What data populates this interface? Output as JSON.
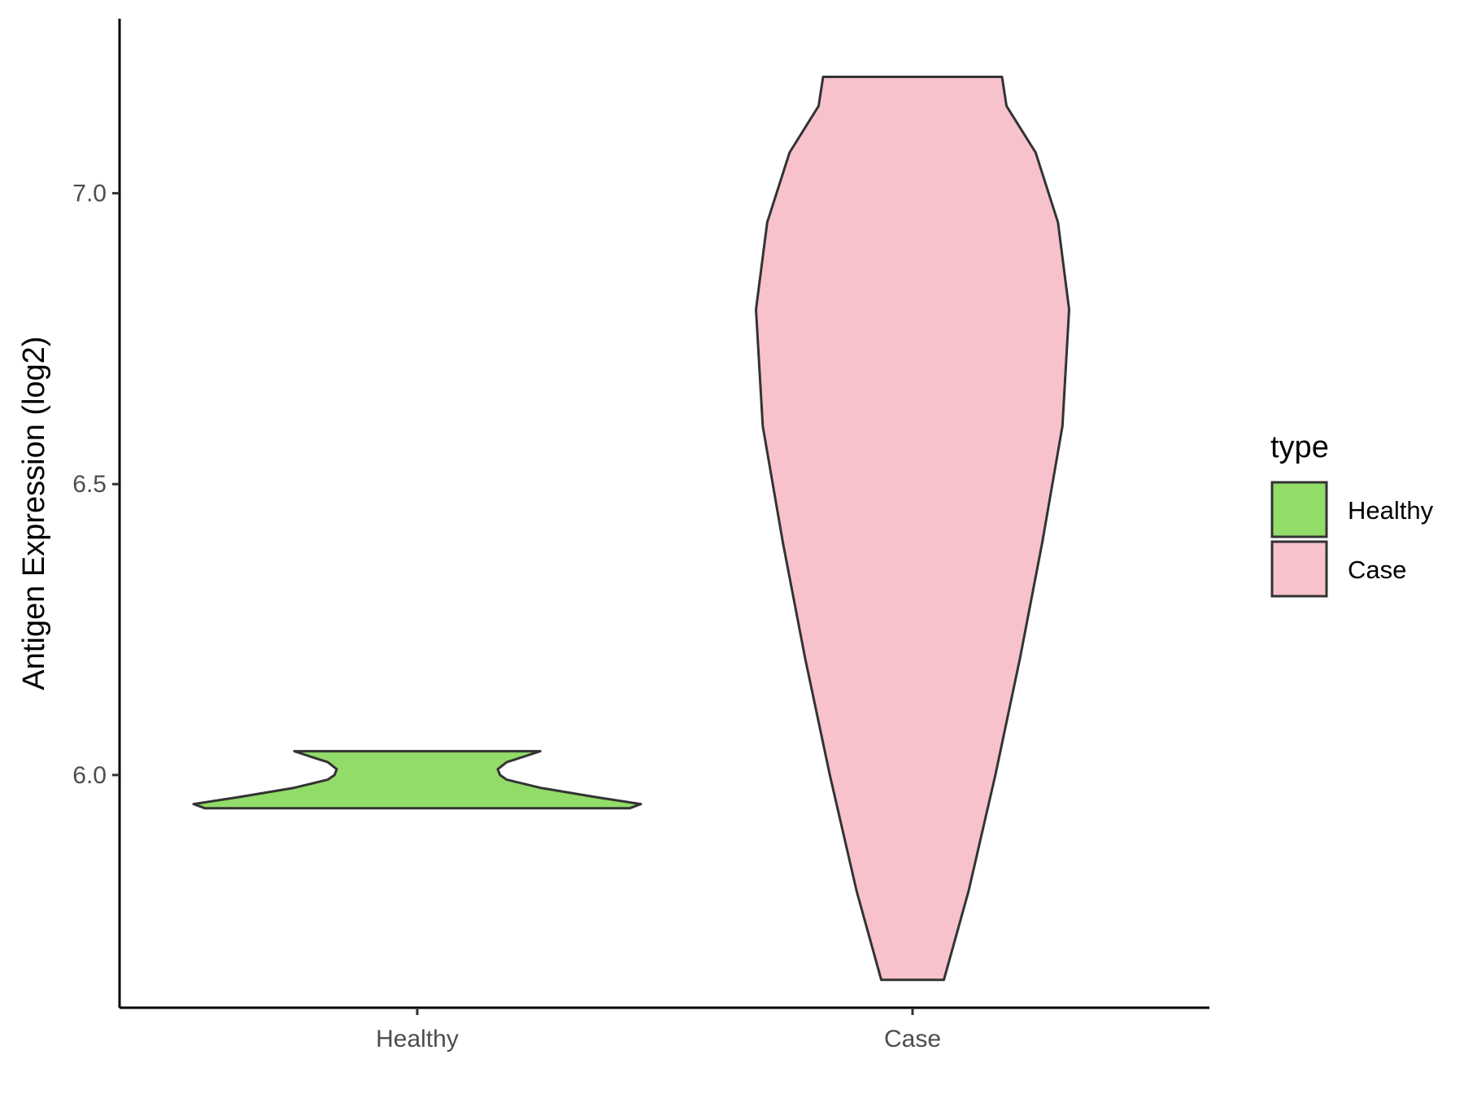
{
  "chart_data": {
    "type": "violin",
    "ylabel": "Antigen Expression (log2)",
    "xlabel": "",
    "ylim": [
      5.6,
      7.3
    ],
    "yticks": [
      6.0,
      6.5,
      7.0
    ],
    "ytick_labels": [
      "6.0",
      "6.5",
      "7.0"
    ],
    "categories": [
      "Healthy",
      "Case"
    ],
    "legend": {
      "title": "type",
      "position": "right",
      "entries": [
        "Healthy",
        "Case"
      ]
    },
    "grid": false,
    "series": [
      {
        "name": "Healthy",
        "color": "#92dc6a",
        "min": 5.943,
        "max": 6.041,
        "density": [
          [
            5.943,
            0.95
          ],
          [
            5.95,
            1.0
          ],
          [
            5.962,
            0.8
          ],
          [
            5.978,
            0.55
          ],
          [
            5.992,
            0.4
          ],
          [
            6.0,
            0.37
          ],
          [
            6.01,
            0.36
          ],
          [
            6.022,
            0.4
          ],
          [
            6.032,
            0.48
          ],
          [
            6.041,
            0.55
          ]
        ]
      },
      {
        "name": "Case",
        "color": "#f7c2cc",
        "min": 5.648,
        "max": 7.2,
        "density": [
          [
            5.648,
            0.14
          ],
          [
            5.8,
            0.25
          ],
          [
            6.0,
            0.37
          ],
          [
            6.2,
            0.48
          ],
          [
            6.4,
            0.58
          ],
          [
            6.6,
            0.67
          ],
          [
            6.8,
            0.7
          ],
          [
            6.95,
            0.65
          ],
          [
            7.07,
            0.55
          ],
          [
            7.15,
            0.42
          ],
          [
            7.2,
            0.4
          ]
        ]
      }
    ]
  }
}
